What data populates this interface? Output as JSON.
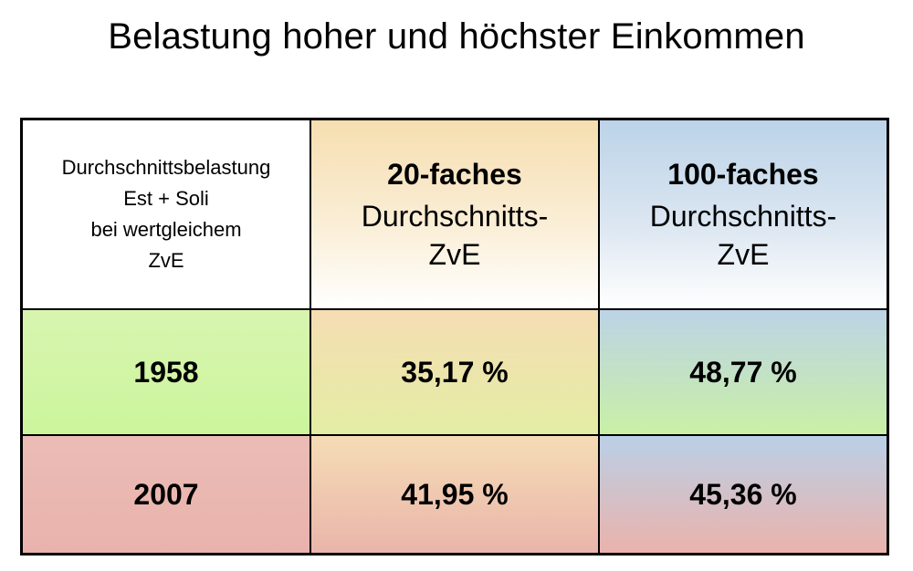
{
  "title": "Belastung hoher und höchster Einkommen",
  "chart_data": {
    "type": "table",
    "title": "Belastung hoher und höchster Einkommen",
    "corner_header": [
      "Durchschnittsbelastung",
      "Est + Soli",
      "bei wertgleichem",
      "ZvE"
    ],
    "columns": [
      {
        "bold": "20-faches",
        "line1": "Durchschnitts-",
        "line2": "ZvE"
      },
      {
        "bold": "100-faches",
        "line1": "Durchschnitts-",
        "line2": "ZvE"
      }
    ],
    "rows": [
      {
        "year": "1958",
        "values": [
          "35,17 %",
          "48,77 %"
        ]
      },
      {
        "year": "2007",
        "values": [
          "41,95 %",
          "45,36 %"
        ]
      }
    ]
  },
  "colors": {
    "col20": "#f6deb0",
    "col100": "#bcd3e8",
    "row1958": "#ccf59c",
    "row2007": "#e9b2ad",
    "border": "#000000"
  }
}
